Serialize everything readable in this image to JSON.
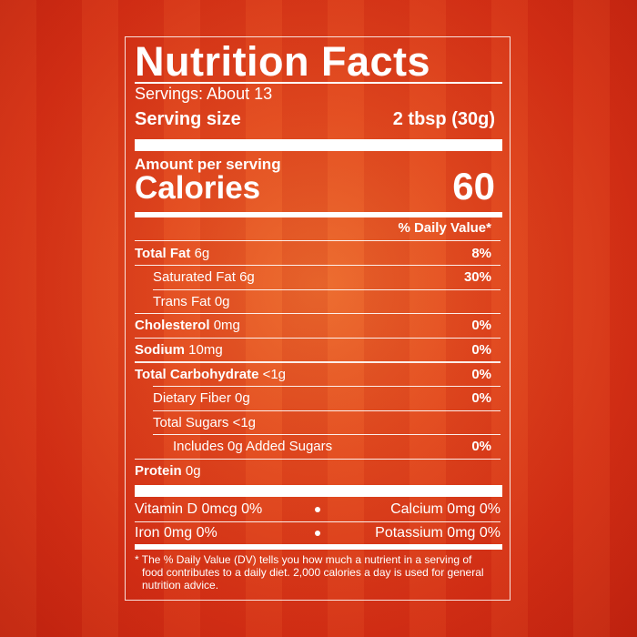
{
  "title": "Nutrition Facts",
  "servings": "Servings: About 13",
  "serving_size": {
    "label": "Serving size",
    "value": "2 tbsp (30g)"
  },
  "amount_per_serving": "Amount per serving",
  "calories": {
    "label": "Calories",
    "value": "60"
  },
  "dv_header": "% Daily Value*",
  "nutrients": [
    {
      "name": "Total Fat",
      "amount": "6g",
      "dv": "8%"
    },
    {
      "name": "Saturated Fat",
      "amount": "6g",
      "dv": "30%"
    },
    {
      "name": "Trans Fat",
      "amount": "0g",
      "dv": ""
    },
    {
      "name": "Cholesterol",
      "amount": "0mg",
      "dv": "0%"
    },
    {
      "name": "Sodium",
      "amount": "10mg",
      "dv": "0%"
    },
    {
      "name": "Total Carbohydrate",
      "amount": "<1g",
      "dv": "0%"
    },
    {
      "name": "Dietary Fiber",
      "amount": "0g",
      "dv": "0%"
    },
    {
      "name": "Total Sugars",
      "amount": "<1g",
      "dv": ""
    },
    {
      "name": "Includes 0g Added Sugars",
      "amount": "",
      "dv": "0%"
    },
    {
      "name": "Protein",
      "amount": "0g",
      "dv": ""
    }
  ],
  "micros": [
    {
      "left": "Vitamin D 0mcg 0%",
      "right": "Calcium 0mg 0%"
    },
    {
      "left": "Iron 0mg 0%",
      "right": "Potassium 0mg 0%"
    }
  ],
  "footnote": "* The % Daily Value (DV) tells you how much a nutrient in a serving of food contributes to a daily diet. 2,000 calories a day is used for general nutrition advice."
}
